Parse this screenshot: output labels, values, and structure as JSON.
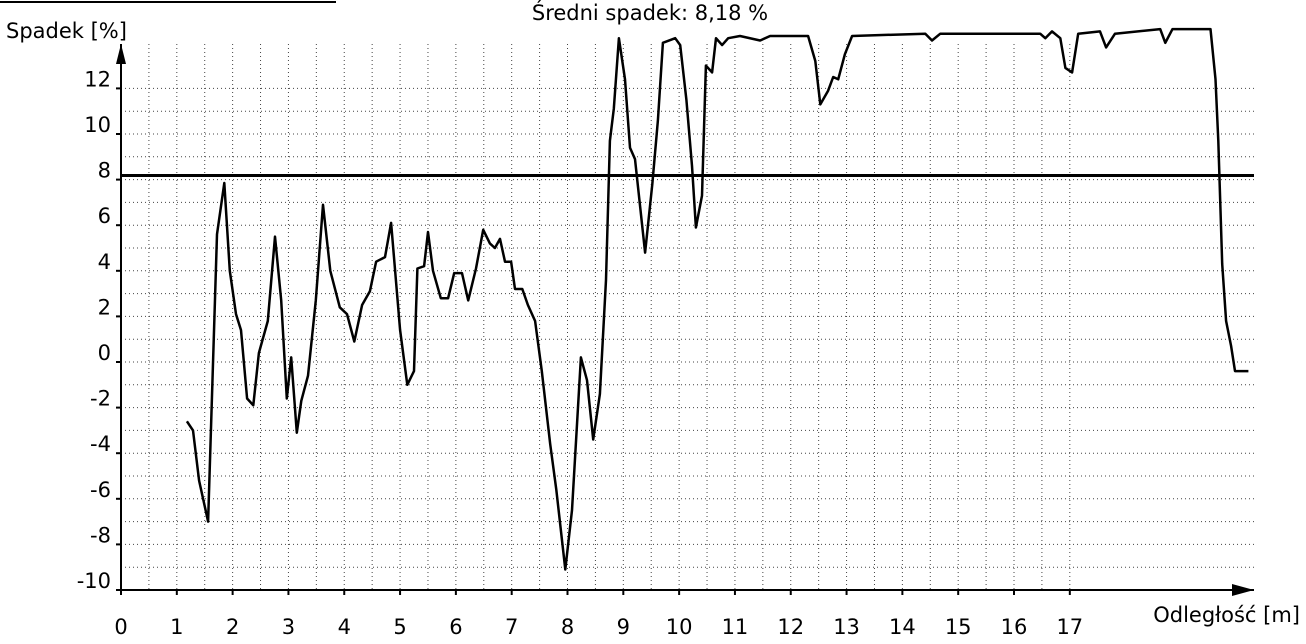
{
  "chart_data": {
    "type": "line",
    "title": "Średni spadek: 8,18 %",
    "y_label": "Spadek [%]",
    "x_label": "Odległość [m]",
    "mean_value": 8.18,
    "xlim": [
      0,
      20.3
    ],
    "ylim": [
      -10,
      15
    ],
    "xticks": [
      0,
      1,
      2,
      3,
      4,
      5,
      6,
      7,
      8,
      9,
      10,
      11,
      12,
      13,
      14,
      15,
      16,
      17
    ],
    "yticks": [
      -10,
      -8,
      -6,
      -4,
      -2,
      0,
      2,
      4,
      6,
      8,
      10,
      12
    ],
    "grid": true,
    "series": [
      {
        "name": "Spadek",
        "color": "#000000",
        "x": [
          1.18,
          1.29,
          1.4,
          1.56,
          1.72,
          1.85,
          1.95,
          2.06,
          2.15,
          2.26,
          2.37,
          2.47,
          2.63,
          2.76,
          2.87,
          2.97,
          3.05,
          3.15,
          3.23,
          3.35,
          3.49,
          3.62,
          3.75,
          3.92,
          4.05,
          4.18,
          4.32,
          4.46,
          4.57,
          4.73,
          4.84,
          5.0,
          5.13,
          5.25,
          5.31,
          5.43,
          5.5,
          5.59,
          5.73,
          5.86,
          5.97,
          6.11,
          6.22,
          6.36,
          6.49,
          6.61,
          6.7,
          6.79,
          6.88,
          6.99,
          7.06,
          7.19,
          7.29,
          7.42,
          7.54,
          7.69,
          7.8,
          7.96,
          8.08,
          8.24,
          8.35,
          8.46,
          8.58,
          8.69,
          8.76,
          8.83,
          8.92,
          9.03,
          9.12,
          9.21,
          9.39,
          9.52,
          9.62,
          9.71,
          9.93,
          10.02,
          10.13,
          10.23,
          10.3,
          10.41,
          10.48,
          10.59,
          10.66,
          10.77,
          10.88,
          11.09,
          11.45,
          11.63,
          12.31,
          12.44,
          12.53,
          12.67,
          12.76,
          12.85,
          12.97,
          13.1,
          14.41,
          14.53,
          14.68,
          16.47,
          16.56,
          16.68,
          16.83,
          16.92,
          17.04,
          17.15,
          17.54,
          17.65,
          17.81,
          18.62,
          18.71,
          18.84,
          19.52,
          19.61,
          19.66,
          19.73,
          19.8,
          19.89,
          19.96,
          20.2
        ],
        "values": [
          -2.6,
          -3.0,
          -5.2,
          -7.0,
          5.6,
          7.85,
          4.0,
          2.1,
          1.4,
          -1.6,
          -1.9,
          0.4,
          1.8,
          5.5,
          2.7,
          -1.6,
          0.2,
          -3.1,
          -1.7,
          -0.6,
          2.7,
          6.9,
          4.0,
          2.4,
          2.1,
          0.9,
          2.5,
          3.1,
          4.4,
          4.6,
          6.1,
          1.4,
          -1.0,
          -0.4,
          4.1,
          4.2,
          5.7,
          4.0,
          2.8,
          2.8,
          3.9,
          3.9,
          2.7,
          4.1,
          5.8,
          5.2,
          5.0,
          5.4,
          4.4,
          4.4,
          3.2,
          3.2,
          2.5,
          1.8,
          -0.4,
          -3.6,
          -5.6,
          -9.1,
          -6.5,
          0.2,
          -0.8,
          -3.4,
          -1.4,
          3.6,
          9.7,
          11.1,
          14.2,
          12.4,
          9.4,
          8.9,
          4.8,
          7.8,
          10.6,
          14.0,
          14.2,
          13.9,
          11.5,
          8.6,
          5.9,
          7.3,
          13.0,
          12.7,
          14.2,
          13.9,
          14.2,
          14.3,
          14.1,
          14.3,
          14.3,
          13.2,
          11.3,
          11.9,
          12.5,
          12.4,
          13.5,
          14.3,
          14.4,
          14.1,
          14.4,
          14.4,
          14.2,
          14.5,
          14.2,
          12.9,
          12.7,
          14.4,
          14.5,
          13.8,
          14.4,
          14.6,
          14.0,
          14.6,
          14.6,
          12.4,
          9.7,
          4.3,
          1.8,
          0.7,
          -0.4,
          -0.4
        ]
      }
    ]
  }
}
